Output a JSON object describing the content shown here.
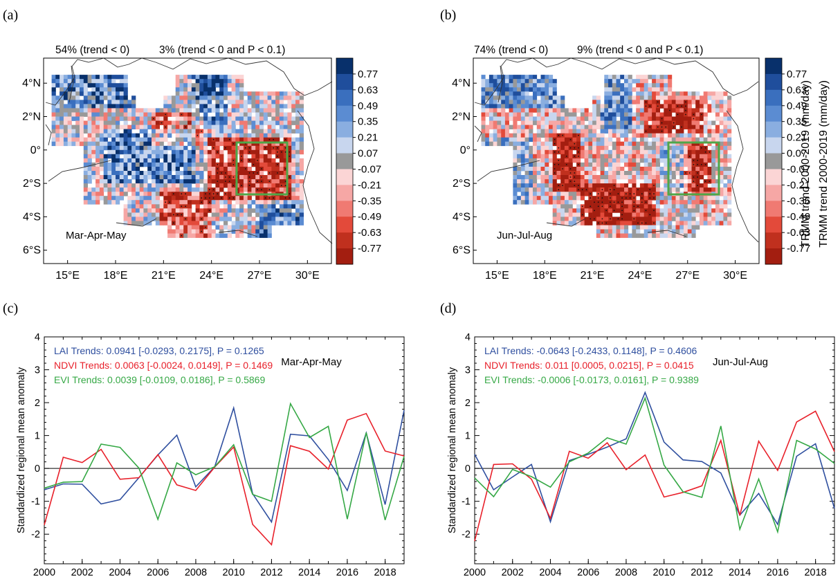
{
  "maps": [
    {
      "panel": "(a)",
      "season": "Mar-Apr-May",
      "stat_neg": "54% (trend < 0)",
      "stat_sig": "3% (trend < 0 and P < 0.1)",
      "colorbar_title": "TRMM trend 2000-2019 (mm/day)",
      "lat_labels": [
        "4°N",
        "2°N",
        "0°",
        "2°S",
        "4°S",
        "6°S"
      ],
      "lon_labels": [
        "15°E",
        "18°E",
        "21°E",
        "24°E",
        "27°E",
        "30°E"
      ]
    },
    {
      "panel": "(b)",
      "season": "Jun-Jul-Aug",
      "stat_neg": "74% (trend < 0)",
      "stat_sig": "9% (trend < 0 and P < 0.1)",
      "colorbar_title": "TRMM trend 2000-2019 (mm/day)",
      "lat_labels": [
        "4°N",
        "2°N",
        "0°",
        "2°S",
        "4°S",
        "6°S"
      ],
      "lon_labels": [
        "15°E",
        "18°E",
        "21°E",
        "24°E",
        "27°E",
        "30°E"
      ]
    }
  ],
  "colorbar": {
    "labels": [
      "0.77",
      "0.63",
      "0.49",
      "0.35",
      "0.21",
      "0.07",
      "-0.07",
      "-0.21",
      "-0.35",
      "-0.49",
      "-0.63",
      "-0.77"
    ],
    "colors": [
      "#08306b",
      "#1f4e9c",
      "#3a6fbe",
      "#5b8cd2",
      "#8aaee0",
      "#c8d6ee",
      "#999999",
      "#fbd5d5",
      "#f6a7a5",
      "#f07a72",
      "#e34a3a",
      "#c0301e",
      "#a31e10"
    ]
  },
  "chart_data": [
    {
      "type": "line",
      "panel": "(c)",
      "season": "Mar-Apr-May",
      "ylabel": "Standardized regional mean anomaly",
      "xlabel": "",
      "xlim": [
        2000,
        2019
      ],
      "ylim": [
        -2.9,
        4
      ],
      "x_ticks": [
        "2000",
        "2002",
        "2004",
        "2006",
        "2008",
        "2010",
        "2012",
        "2014",
        "2016",
        "2018"
      ],
      "y_ticks": [
        "4",
        "3",
        "2",
        "1",
        "0",
        "-1",
        "-2"
      ],
      "x": [
        2000,
        2001,
        2002,
        2003,
        2004,
        2005,
        2006,
        2007,
        2008,
        2009,
        2010,
        2011,
        2012,
        2013,
        2014,
        2015,
        2016,
        2017,
        2018,
        2019
      ],
      "series": [
        {
          "color": "#2f4f9f",
          "values": [
            -0.65,
            -0.47,
            -0.48,
            -1.08,
            -0.95,
            -0.28,
            0.41,
            1.01,
            -0.56,
            0.05,
            1.84,
            -0.77,
            -1.63,
            1.04,
            0.99,
            0.27,
            -0.67,
            1.08,
            -1.1,
            1.77
          ]
        },
        {
          "color": "#e8202a",
          "values": [
            -1.72,
            0.34,
            0.18,
            0.58,
            -0.33,
            -0.28,
            0.42,
            -0.5,
            -0.67,
            0.04,
            0.65,
            -1.7,
            -2.32,
            0.69,
            0.52,
            -0.02,
            1.47,
            1.67,
            0.53,
            0.38
          ]
        },
        {
          "color": "#35a845",
          "values": [
            -0.6,
            -0.42,
            -0.4,
            0.74,
            0.64,
            0.01,
            -1.55,
            0.17,
            -0.19,
            0.05,
            0.72,
            -0.79,
            -1.0,
            1.97,
            0.94,
            1.28,
            -1.54,
            1.09,
            -1.57,
            0.37
          ]
        }
      ],
      "annotations": [
        {
          "text": "LAI Trends: 0.0941 [-0.0293, 0.2175], P = 0.1265",
          "color": "#2f4f9f"
        },
        {
          "text": "NDVI Trends: 0.0063 [-0.0024, 0.0149], P = 0.1469",
          "color": "#e8202a"
        },
        {
          "text": "EVI Trends: 0.0039 [-0.0109, 0.0186], P = 0.5869",
          "color": "#35a845"
        }
      ]
    },
    {
      "type": "line",
      "panel": "(d)",
      "season": "Jun-Jul-Aug",
      "ylabel": "Standardized regional mean anomaly",
      "xlabel": "",
      "xlim": [
        2000,
        2019
      ],
      "ylim": [
        -2.9,
        4
      ],
      "x_ticks": [
        "2000",
        "2002",
        "2004",
        "2006",
        "2008",
        "2010",
        "2012",
        "2014",
        "2016",
        "2018"
      ],
      "y_ticks": [
        "4",
        "3",
        "2",
        "1",
        "0",
        "-1",
        "-2"
      ],
      "x": [
        2000,
        2001,
        2002,
        2003,
        2004,
        2005,
        2006,
        2007,
        2008,
        2009,
        2010,
        2011,
        2012,
        2013,
        2014,
        2015,
        2016,
        2017,
        2018,
        2019
      ],
      "series": [
        {
          "color": "#2f4f9f",
          "values": [
            0.43,
            -0.65,
            -0.26,
            0.12,
            -1.62,
            0.24,
            0.43,
            0.65,
            0.9,
            2.31,
            0.8,
            0.26,
            0.21,
            -0.14,
            -1.42,
            -0.76,
            -1.7,
            0.37,
            0.75,
            -1.22
          ]
        },
        {
          "color": "#e8202a",
          "values": [
            -2.21,
            0.12,
            0.14,
            -0.33,
            -1.52,
            0.52,
            0.31,
            0.78,
            -0.04,
            0.41,
            -0.87,
            -0.73,
            -0.53,
            0.85,
            -1.43,
            0.83,
            -0.06,
            1.41,
            1.74,
            0.51
          ]
        },
        {
          "color": "#35a845",
          "values": [
            -0.29,
            -0.86,
            -0.03,
            -0.25,
            -0.57,
            0.2,
            0.47,
            0.93,
            0.74,
            2.14,
            0.1,
            -0.71,
            -0.88,
            1.29,
            -1.85,
            -0.32,
            -1.93,
            0.85,
            0.59,
            0.15
          ]
        }
      ],
      "annotations": [
        {
          "text": "LAI Trends: -0.0643 [-0.2433, 0.1148], P = 0.4606",
          "color": "#2f4f9f"
        },
        {
          "text": "NDVI Trends: 0.011 [0.0005, 0.0215], P = 0.0415",
          "color": "#e8202a"
        },
        {
          "text": "EVI Trends: -0.0006 [-0.0173, 0.0161], P = 0.9389",
          "color": "#35a845"
        }
      ]
    }
  ]
}
